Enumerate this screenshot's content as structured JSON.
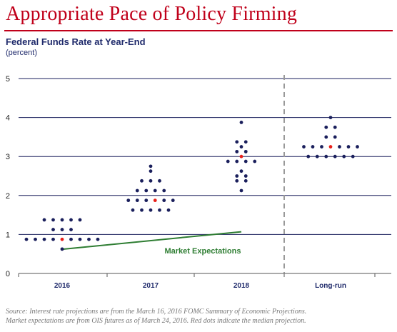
{
  "slide": {
    "title": "Appropriate Pace of Policy Firming"
  },
  "chart_data": {
    "type": "scatter",
    "title": "Federal Funds Rate at Year-End",
    "subtitle": "(percent)",
    "xlabel": "",
    "ylabel": "",
    "ylim": [
      0,
      5
    ],
    "yticks": [
      "0",
      "1",
      "2",
      "3",
      "4",
      "5"
    ],
    "categories": [
      "2016",
      "2017",
      "2018",
      "Long-run"
    ],
    "grid": true,
    "divider_between": [
      "2018",
      "Long-run"
    ],
    "colors": {
      "dots": "#1a1f5c",
      "median": "#e8201a",
      "market": "#2e7d32",
      "grid": "#1a1f5c",
      "divider": "#999999"
    },
    "dot_rows": [
      {
        "category": "2016",
        "y": 1.375,
        "count": 5,
        "median_index": -1
      },
      {
        "category": "2016",
        "y": 1.125,
        "count": 3,
        "median_index": -1
      },
      {
        "category": "2016",
        "y": 0.875,
        "count": 9,
        "median_index": 4
      },
      {
        "category": "2016",
        "y": 0.625,
        "count": 1,
        "median_index": -1
      },
      {
        "category": "2017",
        "y": 2.75,
        "count": 1,
        "median_index": -1
      },
      {
        "category": "2017",
        "y": 2.625,
        "count": 1,
        "median_index": -1
      },
      {
        "category": "2017",
        "y": 2.375,
        "count": 3,
        "median_index": -1
      },
      {
        "category": "2017",
        "y": 2.125,
        "count": 4,
        "median_index": -1
      },
      {
        "category": "2017",
        "y": 1.875,
        "count": 6,
        "median_index": 3
      },
      {
        "category": "2017",
        "y": 1.625,
        "count": 5,
        "median_index": -1
      },
      {
        "category": "2018",
        "y": 3.875,
        "count": 1,
        "median_index": -1
      },
      {
        "category": "2018",
        "y": 3.375,
        "count": 2,
        "median_index": -1
      },
      {
        "category": "2018",
        "y": 3.25,
        "count": 1,
        "median_index": -1
      },
      {
        "category": "2018",
        "y": 3.125,
        "count": 2,
        "median_index": -1
      },
      {
        "category": "2018",
        "y": 3.0,
        "count": 1,
        "median_index": 0
      },
      {
        "category": "2018",
        "y": 2.875,
        "count": 4,
        "median_index": -1
      },
      {
        "category": "2018",
        "y": 2.625,
        "count": 1,
        "median_index": -1
      },
      {
        "category": "2018",
        "y": 2.5,
        "count": 2,
        "median_index": -1
      },
      {
        "category": "2018",
        "y": 2.375,
        "count": 2,
        "median_index": -1
      },
      {
        "category": "2018",
        "y": 2.125,
        "count": 1,
        "median_index": -1
      },
      {
        "category": "Long-run",
        "y": 4.0,
        "count": 1,
        "median_index": -1
      },
      {
        "category": "Long-run",
        "y": 3.75,
        "count": 2,
        "median_index": -1
      },
      {
        "category": "Long-run",
        "y": 3.5,
        "count": 2,
        "median_index": -1
      },
      {
        "category": "Long-run",
        "y": 3.25,
        "count": 7,
        "median_index": 3
      },
      {
        "category": "Long-run",
        "y": 3.0,
        "count": 6,
        "median_index": -1
      }
    ],
    "market_expectations": {
      "name": "Market Expectations",
      "points": [
        {
          "x": "2016",
          "y": 0.62
        },
        {
          "x": "2018",
          "y": 1.07
        }
      ]
    }
  },
  "footer": {
    "line1": "Source: Interest rate projections are from the March 16, 2016 FOMC Summary of Economic Projections.",
    "line2": "Market expectations are from OIS futures as of March 24, 2016. Red dots indicate the median projection."
  }
}
